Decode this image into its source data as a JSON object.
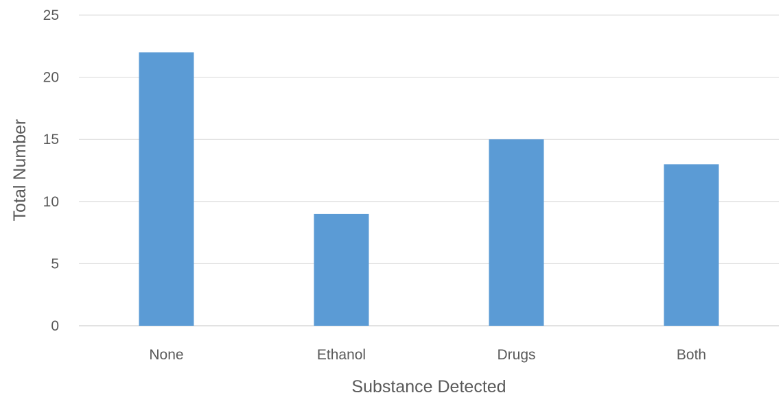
{
  "chart_data": {
    "type": "bar",
    "categories": [
      "None",
      "Ethanol",
      "Drugs",
      "Both"
    ],
    "values": [
      22,
      9,
      15,
      13
    ],
    "title": "",
    "xlabel": "Substance Detected",
    "ylabel": "Total Number",
    "ylim": [
      0,
      25
    ],
    "yticks": [
      0,
      5,
      10,
      15,
      20,
      25
    ],
    "grid": true,
    "legend": "none",
    "bar_color": "#5b9bd5",
    "grid_color": "#d9d9d9",
    "text_color": "#595959"
  }
}
